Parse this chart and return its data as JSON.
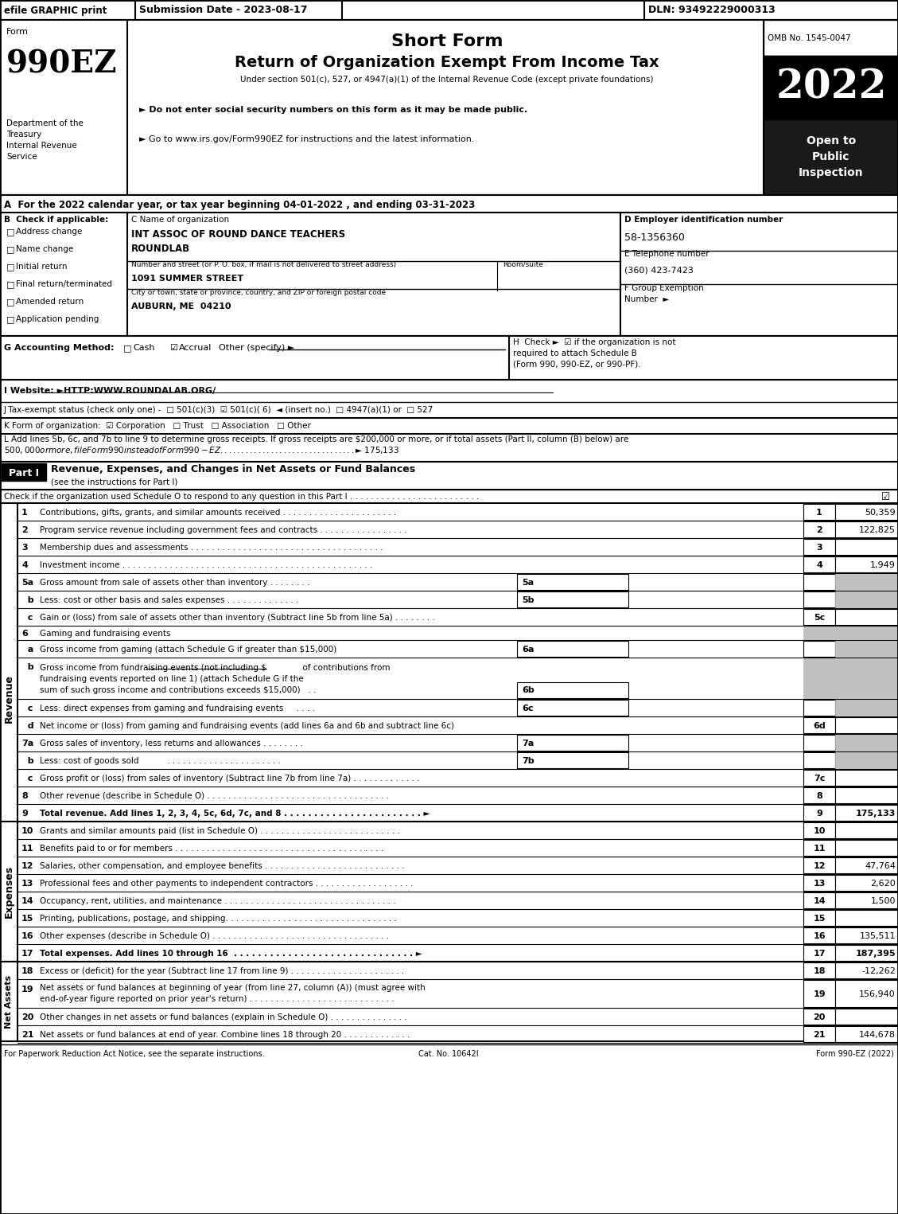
{
  "efile_text": "efile GRAPHIC print",
  "submission_date": "Submission Date - 2023-08-17",
  "dln": "DLN: 93492229000313",
  "form_number": "990EZ",
  "form_label": "Form",
  "short_form_title": "Short Form",
  "main_title": "Return of Organization Exempt From Income Tax",
  "subtitle": "Under section 501(c), 527, or 4947(a)(1) of the Internal Revenue Code (except private foundations)",
  "bullet1": "► Do not enter social security numbers on this form as it may be made public.",
  "bullet2": "► Go to www.irs.gov/Form990EZ for instructions and the latest information.",
  "www_link": "www.irs.gov/Form990EZ",
  "omb": "OMB No. 1545-0047",
  "year": "2022",
  "open_to": "Open to\nPublic\nInspection",
  "dept_text": "Department of the\nTreasury\nInternal Revenue\nService",
  "section_a": "A  For the 2022 calendar year, or tax year beginning 04-01-2022 , and ending 03-31-2023",
  "section_b_label": "B  Check if applicable:",
  "checkboxes_b": [
    "Address change",
    "Name change",
    "Initial return",
    "Final return/terminated",
    "Amended return",
    "Application pending"
  ],
  "section_c_label": "C Name of organization",
  "org_name_1": "INT ASSOC OF ROUND DANCE TEACHERS",
  "org_name_2": "ROUNDLAB",
  "address_label": "Number and street (or P. O. box, if mail is not delivered to street address)",
  "room_suite_label": "Room/suite",
  "street_address": "1091 SUMMER STREET",
  "city_label": "City or town, state or province, country, and ZIP or foreign postal code",
  "city": "AUBURN, ME  04210",
  "section_d_label": "D Employer identification number",
  "ein": "58-1356360",
  "section_e_label": "E Telephone number",
  "phone": "(360) 423-7423",
  "section_f_label": "F Group Exemption",
  "section_f_label2": "Number  ►",
  "section_g_label": "G Accounting Method:",
  "cash_label": "Cash",
  "accrual_label": "Accrual",
  "other_specify": "Other (specify) ►",
  "section_h_line1": "H  Check ►  ☑ if the organization is not",
  "section_h_line2": "required to attach Schedule B",
  "section_h_line3": "(Form 990, 990-EZ, or 990-PF).",
  "section_i": "I Website: ►HTTP:WWW.ROUNDALAB.ORG/",
  "section_j": "J Tax-exempt status (check only one) -  □ 501(c)(3)  ☑ 501(c)( 6)  ◄ (insert no.)  □ 4947(a)(1) or  □ 527",
  "section_k": "K Form of organization:  ☑ Corporation   □ Trust   □ Association   □ Other",
  "section_l1": "L Add lines 5b, 6c, and 7b to line 9 to determine gross receipts. If gross receipts are $200,000 or more, or if total assets (Part II, column (B) below) are",
  "section_l2": "$500,000 or more, file Form 990 instead of Form 990-EZ . . . . . . . . . . . . . . . . . . . . . . . . . . . . . . . . ► $ 175,133",
  "part_i_title": "Revenue, Expenses, and Changes in Net Assets or Fund Balances",
  "part_i_subtitle": "(see the instructions for Part I)",
  "part_i_check": "Check if the organization used Schedule O to respond to any question in this Part I . . . . . . . . . . . . . . . . . . . . . . . . .",
  "footer_left": "For Paperwork Reduction Act Notice, see the separate instructions.",
  "footer_cat": "Cat. No. 10642I",
  "footer_right": "Form 990-EZ (2022)",
  "revenue_label": "Revenue",
  "expenses_label": "Expenses",
  "net_assets_label": "Net Assets",
  "gray_color": "#c0c0c0",
  "black_color": "#000000",
  "white_color": "#ffffff",
  "dark_color": "#1a1a1a"
}
